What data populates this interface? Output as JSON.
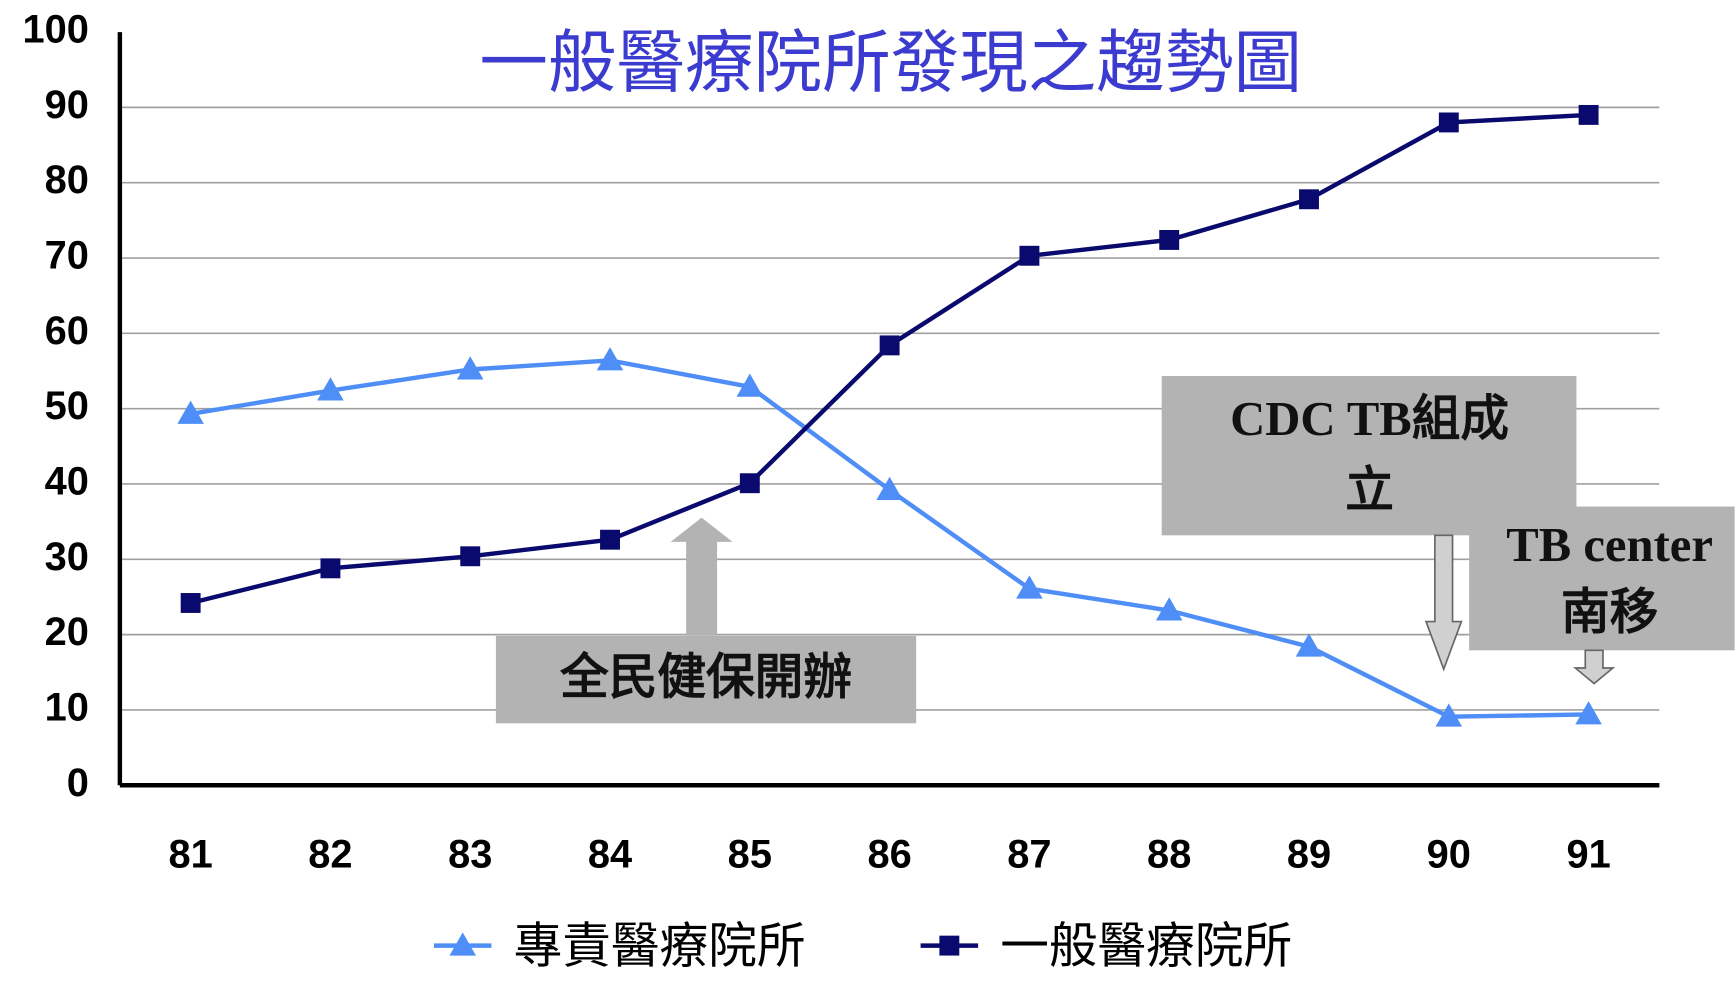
{
  "chart_data": {
    "type": "line",
    "title": "一般醫療院所發現之趨勢圖",
    "categories": [
      "81",
      "82",
      "83",
      "84",
      "85",
      "86",
      "87",
      "88",
      "89",
      "90",
      "91"
    ],
    "series": [
      {
        "name": "專責醫療院所",
        "color": "#4f8ef7",
        "marker": "triangle",
        "values": [
          49.3,
          52.4,
          55.2,
          56.4,
          52.9,
          39.2,
          26.1,
          23.2,
          18.4,
          9.1,
          9.4
        ]
      },
      {
        "name": "一般醫療院所",
        "color": "#0a0a6e",
        "marker": "square",
        "values": [
          24.2,
          28.8,
          30.4,
          32.6,
          40.1,
          58.4,
          70.3,
          72.4,
          77.8,
          88.0,
          89.0
        ]
      }
    ],
    "ylim": [
      0,
      100
    ],
    "yticks": [
      0,
      10,
      20,
      30,
      40,
      50,
      60,
      70,
      80,
      90,
      100
    ],
    "grid": true,
    "legend": "bottom",
    "annotations": [
      {
        "lines": [
          "全民健保開辦"
        ]
      },
      {
        "lines": [
          "CDC TB組成",
          "立"
        ]
      },
      {
        "lines": [
          "TB center",
          "南移"
        ]
      }
    ]
  }
}
